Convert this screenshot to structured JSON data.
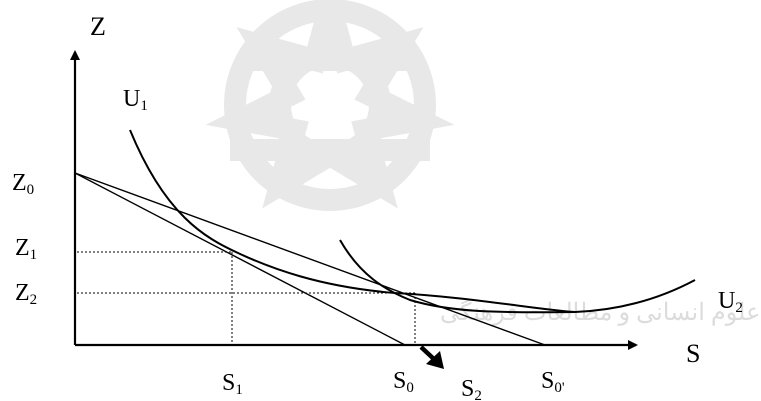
{
  "labels": {
    "z_axis": "Z",
    "s_axis": "S",
    "u1": {
      "base": "U",
      "sub": "1"
    },
    "u2": {
      "base": "U",
      "sub": "2"
    },
    "z0": {
      "base": "Z",
      "sub": "0"
    },
    "z1": {
      "base": "Z",
      "sub": "1"
    },
    "z2": {
      "base": "Z",
      "sub": "2"
    },
    "s1": {
      "base": "S",
      "sub": "1"
    },
    "s0": {
      "base": "S",
      "sub": "0"
    },
    "s2": {
      "base": "S",
      "sub": "2"
    },
    "s0p": {
      "base": "S",
      "sub": "0'"
    }
  },
  "watermark_text": "پژوهشگاه علوم انسانی و مطالعات فرهنگی",
  "colors": {
    "ink": "#000000",
    "watermark": "#e6e6e6"
  }
}
